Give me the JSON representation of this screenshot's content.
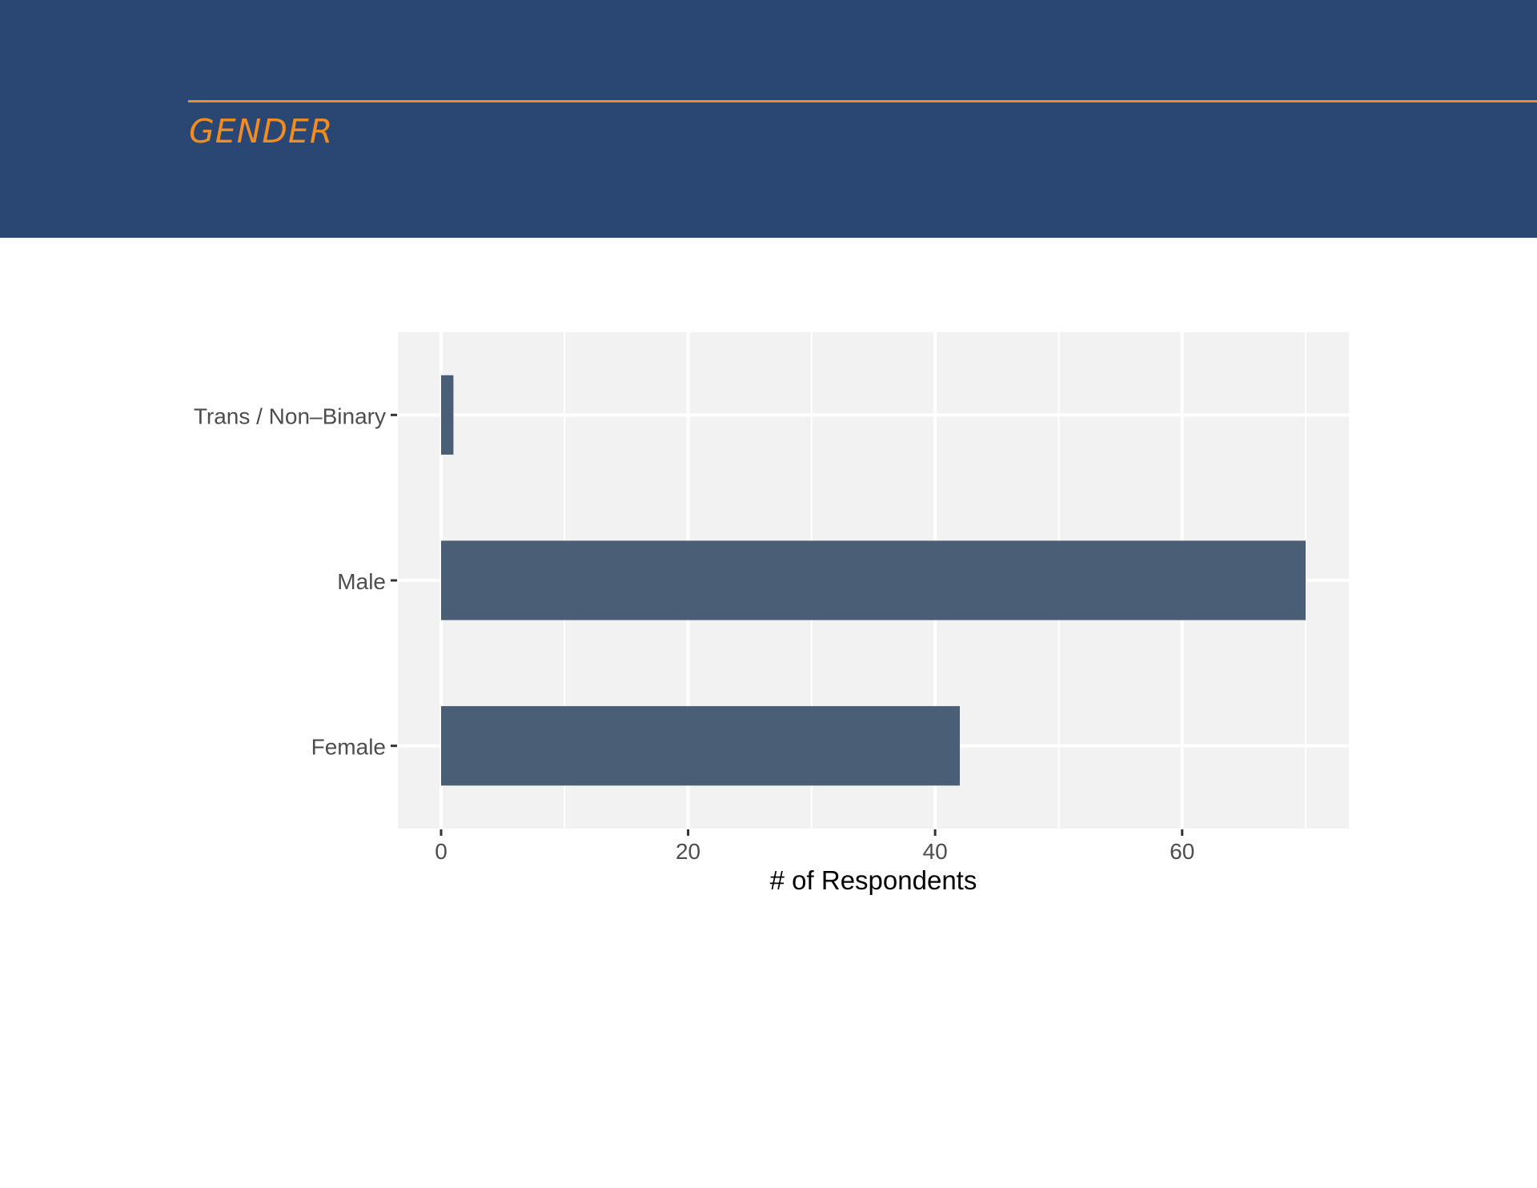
{
  "header": {
    "title": "GENDER"
  },
  "colors": {
    "header_background": "#2a4672",
    "accent": "#f08c23",
    "bar_fill": "#4a5f75",
    "panel_background": "#f2f2f2",
    "grid": "#ffffff",
    "axis_text": "#4d4d4d"
  },
  "chart_data": {
    "type": "bar",
    "orientation": "horizontal",
    "categories": [
      "Trans / Non–Binary",
      "Male",
      "Female"
    ],
    "values": [
      1,
      70,
      42
    ],
    "xlabel": "# of Respondents",
    "ylabel": "",
    "xlim": [
      -3.5,
      73.5
    ],
    "xticks": [
      0,
      20,
      40,
      60
    ],
    "xtick_labels": [
      "0",
      "20",
      "40",
      "60"
    ],
    "grid": true
  }
}
